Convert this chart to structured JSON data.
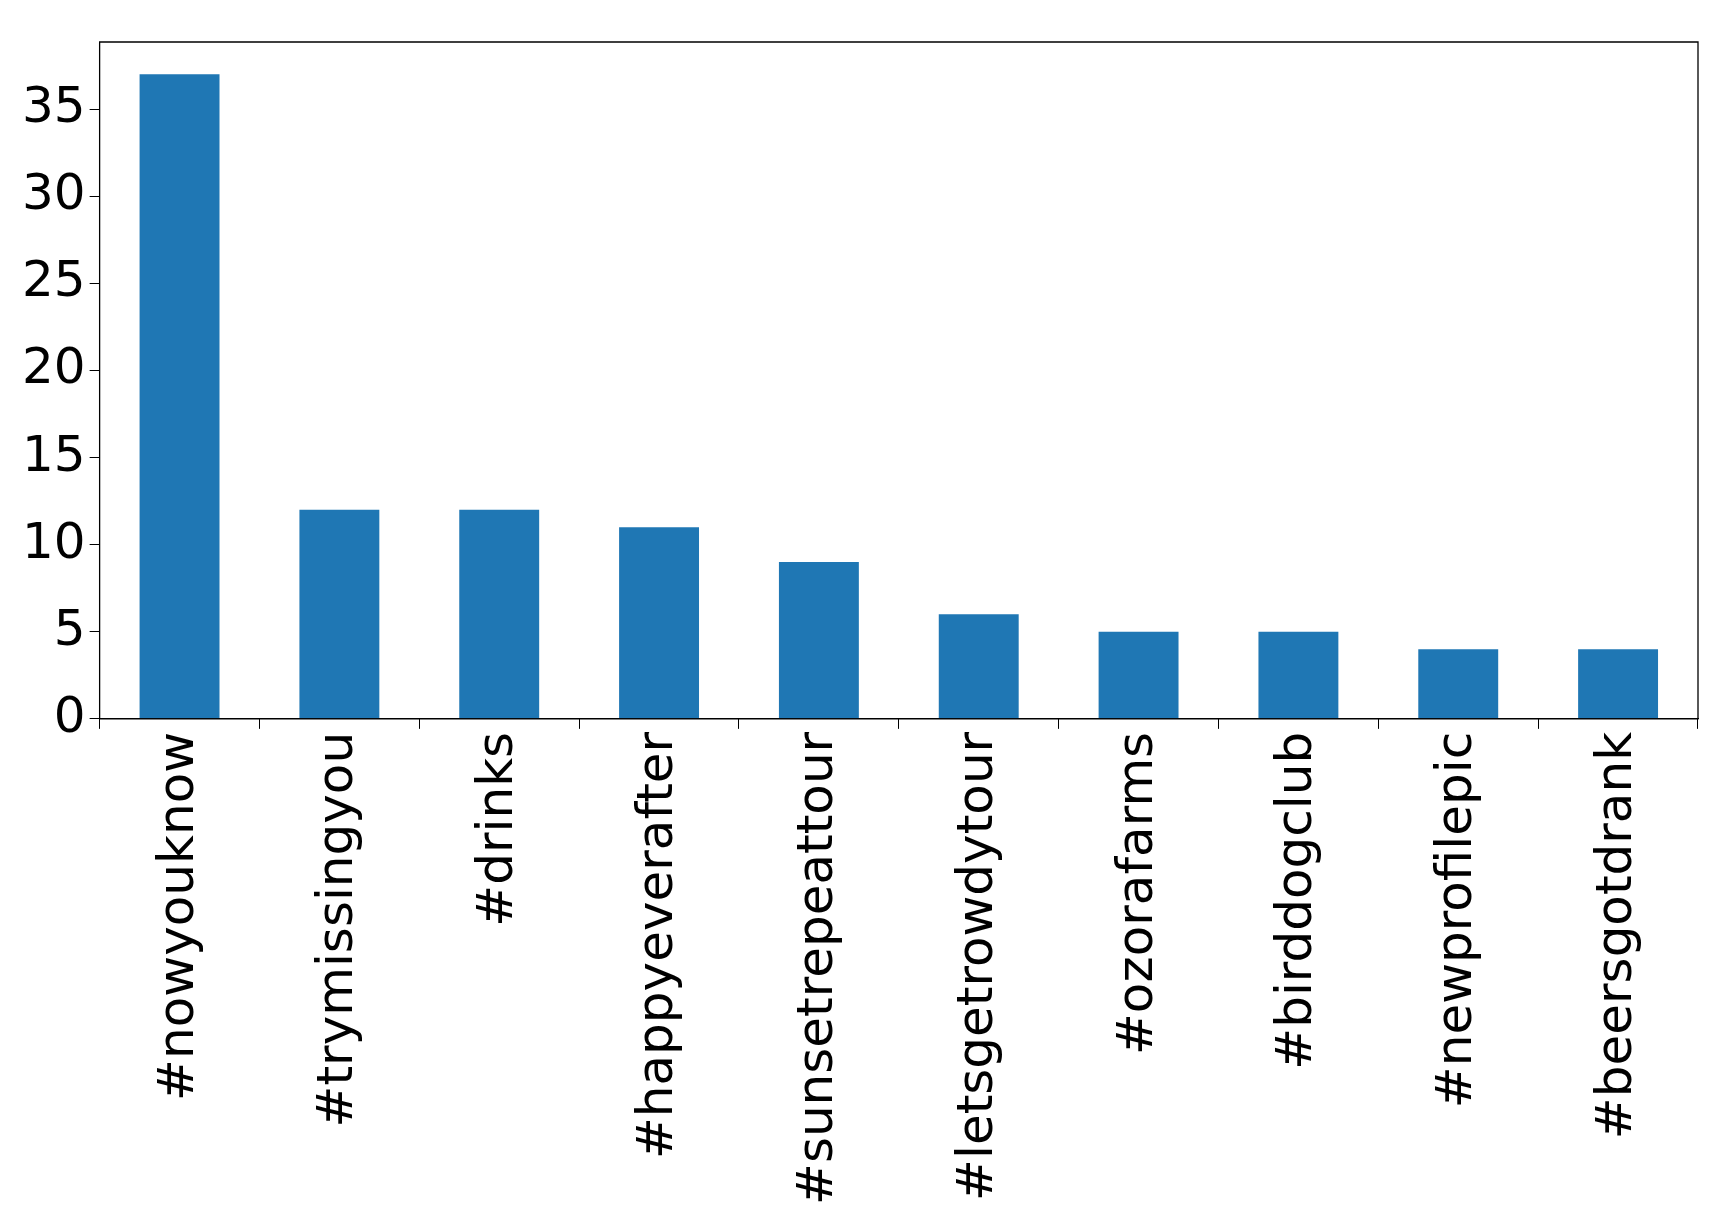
{
  "chart_data": {
    "type": "bar",
    "categories": [
      "#nowyouknow",
      "#trymissingyou",
      "#drinks",
      "#happyeverafter",
      "#sunsetrepeattour",
      "#letsgetrowdytour",
      "#ozorafarms",
      "#birddogclub",
      "#newprofilepic",
      "#beersgotdrank"
    ],
    "values": [
      37,
      12,
      12,
      11,
      9,
      6,
      5,
      5,
      4,
      4
    ],
    "color": "#1f77b4",
    "ylim": [
      0,
      38.85
    ],
    "yticks": [
      0,
      5,
      10,
      15,
      20,
      25,
      30,
      35
    ],
    "grid": false,
    "legend": false
  }
}
